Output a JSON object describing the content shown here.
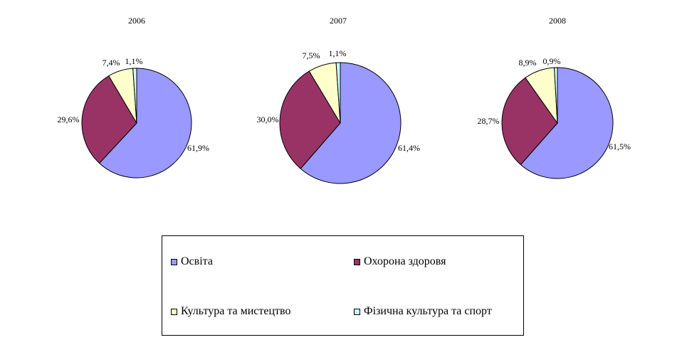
{
  "chart_data": [
    {
      "type": "pie",
      "title": "2006",
      "slices": [
        {
          "label": "Освіта",
          "value": 61.9,
          "text": "61,9%"
        },
        {
          "label": "Охорона здоровя",
          "value": 29.6,
          "text": "29,6%"
        },
        {
          "label": "Культура та мистецтво",
          "value": 7.4,
          "text": "7,4%"
        },
        {
          "label": "Фізична культура та спорт",
          "value": 1.1,
          "text": "1,1%"
        }
      ]
    },
    {
      "type": "pie",
      "title": "2007",
      "slices": [
        {
          "label": "Освіта",
          "value": 61.4,
          "text": "61,4%"
        },
        {
          "label": "Охорона здоровя",
          "value": 30.0,
          "text": "30,0%"
        },
        {
          "label": "Культура та мистецтво",
          "value": 7.5,
          "text": "7,5%"
        },
        {
          "label": "Фізична культура та спорт",
          "value": 1.1,
          "text": "1,1%"
        }
      ]
    },
    {
      "type": "pie",
      "title": "2008",
      "slices": [
        {
          "label": "Освіта",
          "value": 61.5,
          "text": "61,5%"
        },
        {
          "label": "Охорона здоровя",
          "value": 28.7,
          "text": "28,7%"
        },
        {
          "label": "Культура та мистецтво",
          "value": 8.9,
          "text": "8,9%"
        },
        {
          "label": "Фізична культура та спорт",
          "value": 0.9,
          "text": "0,9%"
        }
      ]
    }
  ],
  "legend": {
    "placement": "bottom-center",
    "items": [
      {
        "label": "Освіта",
        "color": "#9999ff"
      },
      {
        "label": "Охорона здоровя",
        "color": "#993366"
      },
      {
        "label": "Культура та мистецтво",
        "color": "#ffffcc"
      },
      {
        "label": "Фізична культура та спорт",
        "color": "#ccffff"
      }
    ]
  }
}
